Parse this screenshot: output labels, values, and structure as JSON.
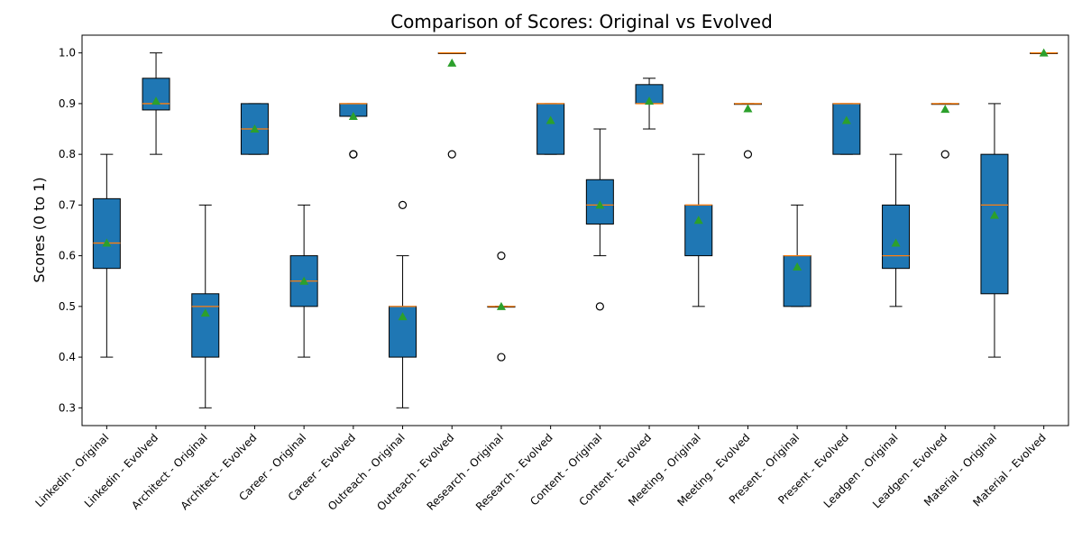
{
  "chart_data": {
    "type": "box",
    "title": "Comparison of Scores: Original vs Evolved",
    "xlabel": "",
    "ylabel": "Scores (0 to 1)",
    "ylim": [
      0.265,
      1.035
    ],
    "yticks": [
      0.3,
      0.4,
      0.5,
      0.6,
      0.7,
      0.8,
      0.9,
      1.0
    ],
    "ytick_labels": [
      "0.3",
      "0.4",
      "0.5",
      "0.6",
      "0.7",
      "0.8",
      "0.9",
      "1.0"
    ],
    "colors": {
      "box_fill": "#1f77b4",
      "median": "#ff7f0e",
      "mean_marker": "#2ca02c",
      "outline": "#000000"
    },
    "categories": [
      {
        "label": "Linkedin - Original",
        "whislo": 0.4,
        "q1": 0.575,
        "med": 0.625,
        "q3": 0.7125,
        "whishi": 0.8,
        "mean": 0.625,
        "fliers": []
      },
      {
        "label": "Linkedin - Evolved",
        "whislo": 0.8,
        "q1": 0.8875,
        "med": 0.9,
        "q3": 0.95,
        "whishi": 1.0,
        "mean": 0.905,
        "fliers": []
      },
      {
        "label": "Architect - Original",
        "whislo": 0.3,
        "q1": 0.4,
        "med": 0.5,
        "q3": 0.525,
        "whishi": 0.7,
        "mean": 0.487,
        "fliers": []
      },
      {
        "label": "Architect - Evolved",
        "whislo": 0.8,
        "q1": 0.8,
        "med": 0.85,
        "q3": 0.9,
        "whishi": 0.9,
        "mean": 0.85,
        "fliers": []
      },
      {
        "label": "Career - Original",
        "whislo": 0.4,
        "q1": 0.5,
        "med": 0.55,
        "q3": 0.6,
        "whishi": 0.7,
        "mean": 0.55,
        "fliers": []
      },
      {
        "label": "Career - Evolved",
        "whislo": 0.875,
        "q1": 0.875,
        "med": 0.9,
        "q3": 0.9,
        "whishi": 0.9,
        "mean": 0.875,
        "fliers": [
          0.8,
          0.8
        ]
      },
      {
        "label": "Outreach - Original",
        "whislo": 0.3,
        "q1": 0.4,
        "med": 0.5,
        "q3": 0.5,
        "whishi": 0.6,
        "mean": 0.48,
        "fliers": [
          0.7
        ]
      },
      {
        "label": "Outreach - Evolved",
        "whislo": 1.0,
        "q1": 1.0,
        "med": 1.0,
        "q3": 1.0,
        "whishi": 1.0,
        "mean": 0.98,
        "fliers": [
          0.8
        ]
      },
      {
        "label": "Research - Original",
        "whislo": 0.5,
        "q1": 0.5,
        "med": 0.5,
        "q3": 0.5,
        "whishi": 0.5,
        "mean": 0.5,
        "fliers": [
          0.6,
          0.4
        ]
      },
      {
        "label": "Research - Evolved",
        "whislo": 0.8,
        "q1": 0.8,
        "med": 0.9,
        "q3": 0.9,
        "whishi": 0.9,
        "mean": 0.867,
        "fliers": []
      },
      {
        "label": "Content - Original",
        "whislo": 0.6,
        "q1": 0.6625,
        "med": 0.7,
        "q3": 0.75,
        "whishi": 0.85,
        "mean": 0.7,
        "fliers": [
          0.5
        ]
      },
      {
        "label": "Content - Evolved",
        "whislo": 0.85,
        "q1": 0.9,
        "med": 0.9,
        "q3": 0.9375,
        "whishi": 0.95,
        "mean": 0.905,
        "fliers": []
      },
      {
        "label": "Meeting - Original",
        "whislo": 0.5,
        "q1": 0.6,
        "med": 0.7,
        "q3": 0.7,
        "whishi": 0.8,
        "mean": 0.67,
        "fliers": []
      },
      {
        "label": "Meeting - Evolved",
        "whislo": 0.9,
        "q1": 0.9,
        "med": 0.9,
        "q3": 0.9,
        "whishi": 0.9,
        "mean": 0.89,
        "fliers": [
          0.8
        ]
      },
      {
        "label": "Present - Original",
        "whislo": 0.5,
        "q1": 0.5,
        "med": 0.6,
        "q3": 0.6,
        "whishi": 0.7,
        "mean": 0.578,
        "fliers": []
      },
      {
        "label": "Present - Evolved",
        "whislo": 0.8,
        "q1": 0.8,
        "med": 0.9,
        "q3": 0.9,
        "whishi": 0.9,
        "mean": 0.867,
        "fliers": []
      },
      {
        "label": "Leadgen - Original",
        "whislo": 0.5,
        "q1": 0.575,
        "med": 0.6,
        "q3": 0.7,
        "whishi": 0.8,
        "mean": 0.625,
        "fliers": []
      },
      {
        "label": "Leadgen - Evolved",
        "whislo": 0.9,
        "q1": 0.9,
        "med": 0.9,
        "q3": 0.9,
        "whishi": 0.9,
        "mean": 0.889,
        "fliers": [
          0.8
        ]
      },
      {
        "label": "Material - Original",
        "whislo": 0.4,
        "q1": 0.525,
        "med": 0.7,
        "q3": 0.8,
        "whishi": 0.9,
        "mean": 0.68,
        "fliers": []
      },
      {
        "label": "Material - Evolved",
        "whislo": 1.0,
        "q1": 1.0,
        "med": 1.0,
        "q3": 1.0,
        "whishi": 1.0,
        "mean": 1.0,
        "fliers": []
      }
    ]
  }
}
